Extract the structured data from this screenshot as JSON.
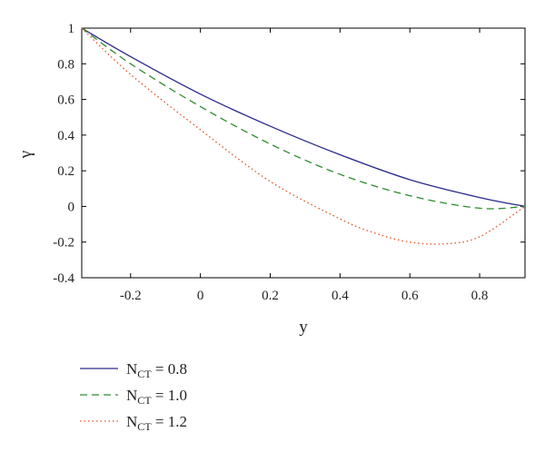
{
  "chart_data": {
    "type": "line",
    "xlabel": "y",
    "ylabel": "γ",
    "xlim": [
      -0.34,
      0.93
    ],
    "ylim": [
      -0.4,
      1.0
    ],
    "xticks": [
      -0.2,
      0,
      0.2,
      0.4,
      0.6,
      0.8
    ],
    "xtick_labels": [
      "-0.2",
      "0",
      "0.2",
      "0.4",
      "0.6",
      "0.8"
    ],
    "yticks": [
      -0.4,
      -0.2,
      0,
      0.2,
      0.4,
      0.6,
      0.8,
      1.0
    ],
    "ytick_labels": [
      "-0.4",
      "-0.2",
      "0",
      "0.2",
      "0.4",
      "0.6",
      "0.8",
      "1"
    ],
    "grid": false,
    "legend_position": "below",
    "series": [
      {
        "name": "N_CT = 0.8",
        "legend_main": "N",
        "legend_sub": "CT",
        "legend_rest": " = 0.8",
        "color": "#2a2a8c",
        "dash": "solid",
        "x": [
          -0.34,
          -0.2,
          0,
          0.2,
          0.4,
          0.6,
          0.8,
          0.93
        ],
        "y": [
          1.0,
          0.84,
          0.63,
          0.45,
          0.29,
          0.15,
          0.05,
          0.0
        ]
      },
      {
        "name": "N_CT = 1.0",
        "legend_main": "N",
        "legend_sub": "CT",
        "legend_rest": " = 1.0",
        "color": "#2e8b2e",
        "dash": "dashed",
        "x": [
          -0.34,
          -0.2,
          0,
          0.2,
          0.4,
          0.6,
          0.8,
          0.93
        ],
        "y": [
          1.0,
          0.8,
          0.56,
          0.35,
          0.18,
          0.06,
          -0.01,
          0.0
        ]
      },
      {
        "name": "N_CT = 1.2",
        "legend_main": "N",
        "legend_sub": "CT",
        "legend_rest": " = 1.2",
        "color": "#e0501e",
        "dash": "dotted",
        "x": [
          -0.34,
          -0.2,
          0,
          0.2,
          0.4,
          0.5,
          0.6,
          0.7,
          0.8,
          0.93
        ],
        "y": [
          1.0,
          0.74,
          0.43,
          0.14,
          -0.07,
          -0.15,
          -0.2,
          -0.21,
          -0.17,
          0.0
        ]
      }
    ]
  }
}
